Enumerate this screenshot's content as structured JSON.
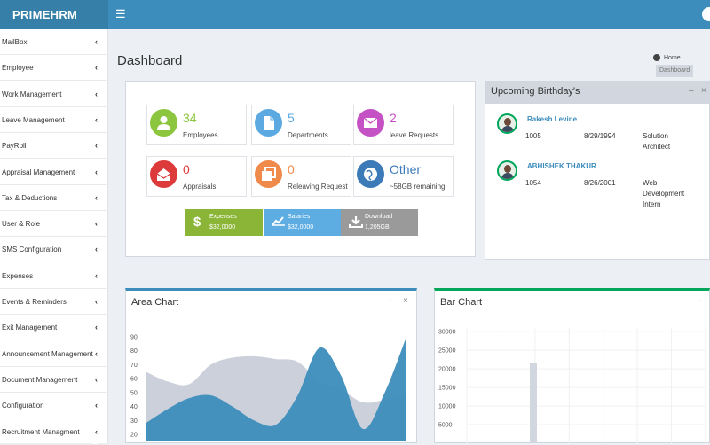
{
  "header": {
    "brand": "PRIMEHRM",
    "menu_icon": "hamburger-icon",
    "color": "#3c8dbc"
  },
  "sidebar": {
    "items": [
      {
        "label": "MailBox"
      },
      {
        "label": "Employee"
      },
      {
        "label": "Work Management"
      },
      {
        "label": "Leave Management"
      },
      {
        "label": "PayRoll"
      },
      {
        "label": "Appraisal Management"
      },
      {
        "label": "Tax & Deductions"
      },
      {
        "label": "User & Role"
      },
      {
        "label": "SMS Configuration"
      },
      {
        "label": "Expenses"
      },
      {
        "label": "Events & Reminders"
      },
      {
        "label": "Exit Management"
      },
      {
        "label": "Announcement Management"
      },
      {
        "label": "Document Management"
      },
      {
        "label": "Configuration"
      },
      {
        "label": "Recruitment Managment"
      }
    ],
    "chevron": "‹"
  },
  "page": {
    "title": "Dashboard",
    "breadcrumb": {
      "home": "Home",
      "current": "Dashboard"
    }
  },
  "stats": [
    {
      "value": "34",
      "label": "Employees",
      "icon": "user-icon",
      "color": "#8cc63f"
    },
    {
      "value": "5",
      "label": "Departments",
      "icon": "document-icon",
      "color": "#5ba9e0"
    },
    {
      "value": "2",
      "label": "leave Requests",
      "icon": "envelope-icon",
      "color": "#c552c5"
    },
    {
      "value": "0",
      "label": "Appraisals",
      "icon": "open-envelope-icon",
      "color": "#dd3b3b"
    },
    {
      "value": "0",
      "label": "Releaving Request",
      "icon": "copy-icon",
      "color": "#f08a4b"
    },
    {
      "value": "Other",
      "label": "~58GB remaining",
      "icon": "globe-icon",
      "color": "#3c7ab8"
    }
  ],
  "summary": [
    {
      "title": "Expenses",
      "value": "$32,0000",
      "icon": "dollar-icon",
      "color": "#8ab536"
    },
    {
      "title": "Salaries",
      "value": "$32,0000",
      "icon": "chart-line-icon",
      "color": "#5dade2"
    },
    {
      "title": "Download",
      "value": "1,205GB",
      "icon": "download-icon",
      "color": "#9a9a9a"
    }
  ],
  "birthdays": {
    "title": "Upcoming Birthday's",
    "people": [
      {
        "name": "Rakesh Levine",
        "id": "1005",
        "date": "8/29/1994",
        "role_lines": [
          "Solution",
          "Architect"
        ]
      },
      {
        "name": "ABHISHEK THAKUR",
        "id": "1054",
        "date": "8/26/2001",
        "role_lines": [
          "Web",
          "Development",
          "Intern"
        ]
      }
    ]
  },
  "area_chart": {
    "title": "Area Chart",
    "tools": {
      "minimize": "–",
      "close": "×"
    }
  },
  "bar_chart": {
    "title": "Bar Chart",
    "tools": {
      "minimize": "–"
    }
  },
  "chart_data": [
    {
      "type": "area",
      "title": "Area Chart",
      "y_ticks": [
        90,
        80,
        70,
        60,
        50,
        40,
        30,
        20
      ],
      "ylim": [
        15,
        95
      ],
      "x": [
        0,
        1,
        2,
        3,
        4,
        5,
        6,
        7,
        8,
        9,
        10,
        11,
        12
      ],
      "series": [
        {
          "color": "#c5cbd6",
          "values": [
            65,
            58,
            56,
            70,
            75,
            76,
            74,
            72,
            58,
            52,
            43,
            45,
            50
          ]
        },
        {
          "color": "#3c8dbc",
          "values": [
            28,
            38,
            46,
            48,
            40,
            30,
            27,
            48,
            82,
            62,
            24,
            50,
            90
          ]
        }
      ]
    },
    {
      "type": "bar",
      "title": "Bar Chart",
      "y_ticks": [
        30000,
        25000,
        20000,
        15000,
        10000,
        5000
      ],
      "ylim": [
        0,
        31000
      ],
      "values": [
        21500
      ],
      "color": "#d2d6de"
    }
  ]
}
